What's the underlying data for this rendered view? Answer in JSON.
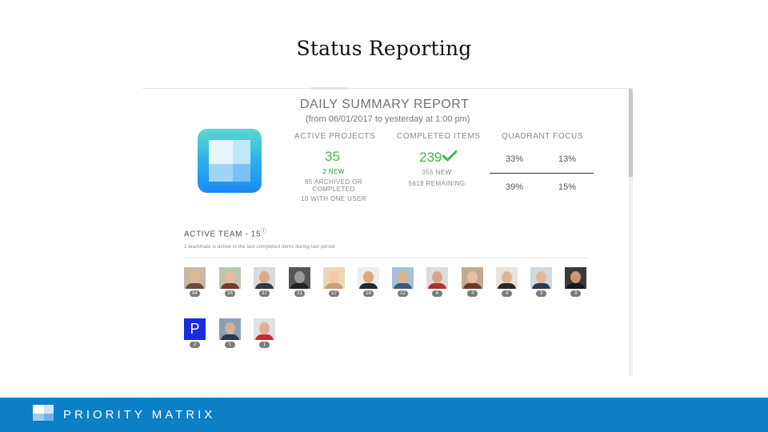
{
  "slide": {
    "title": "Status Reporting"
  },
  "report": {
    "title": "DAILY SUMMARY REPORT",
    "subtitle": "(from 06/01/2017 to yesterday at 1:00 pm)"
  },
  "active_projects": {
    "label": "ACTIVE PROJECTS",
    "value": "35",
    "new": "2 NEW",
    "archived_line1": "85 ARCHIVED OR",
    "archived_line2": "COMPLETED",
    "one_user": "10 WITH ONE USER"
  },
  "completed_items": {
    "label": "COMPLETED ITEMS",
    "value": "239",
    "new": "355 NEW",
    "remaining": "5618 REMAINING"
  },
  "quadrant_focus": {
    "label": "QUADRANT FOCUS",
    "q1": "33%",
    "q2": "13%",
    "q3": "39%",
    "q4": "15%"
  },
  "team": {
    "heading": "ACTIVE TEAM - 15",
    "info_symbol": "ⓘ",
    "note": "1 teammate is active in the last completed items during last period",
    "members": [
      {
        "count": "84"
      },
      {
        "count": "38"
      },
      {
        "count": "37"
      },
      {
        "count": "21"
      },
      {
        "count": "17"
      },
      {
        "count": "14"
      },
      {
        "count": "12"
      },
      {
        "count": "6"
      },
      {
        "count": "4"
      },
      {
        "count": "4"
      },
      {
        "count": "3"
      },
      {
        "count": "3"
      },
      {
        "count": "2",
        "initial": "P"
      },
      {
        "count": "1"
      },
      {
        "count": "1"
      }
    ]
  },
  "footer": {
    "brand": "PRIORITY MATRIX"
  },
  "colors": {
    "accent_green": "#47b64f",
    "footer_blue": "#0c7fc5",
    "p_avatar": "#1a2be0"
  },
  "icons": [
    "priority-matrix-logo-icon",
    "checkmark-icon",
    "info-icon"
  ]
}
